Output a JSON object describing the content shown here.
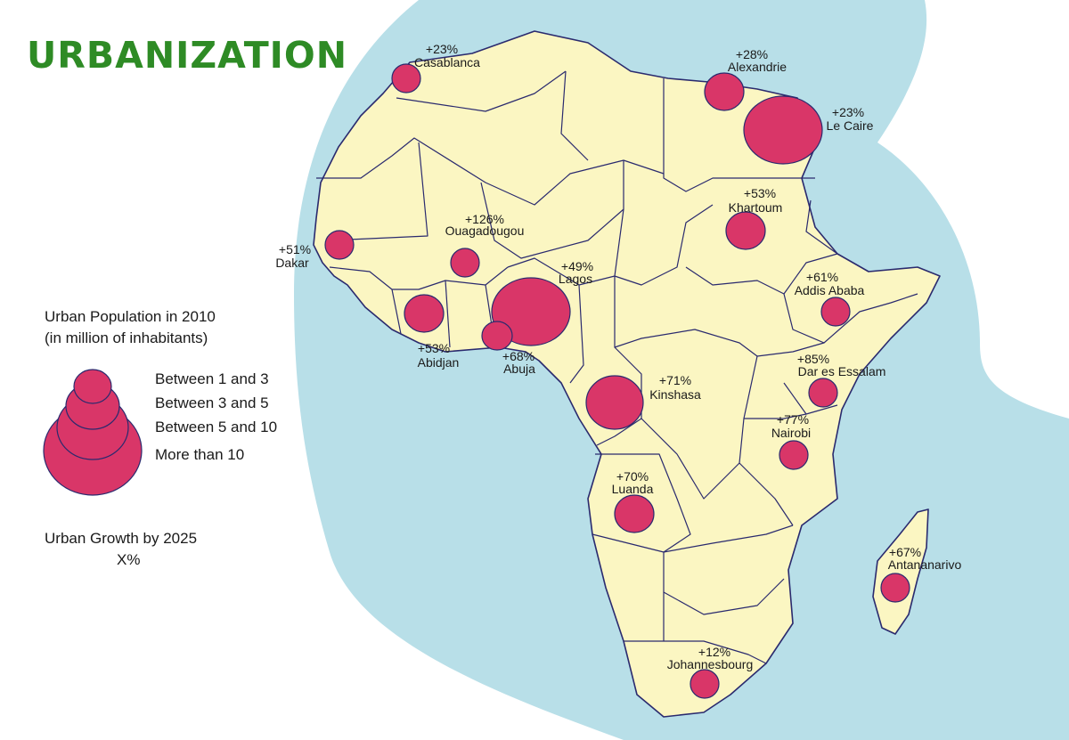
{
  "title": "URBANIZATION",
  "colors": {
    "ocean": "#b8dfe8",
    "land": "#fbf6c2",
    "border": "#2a2a6e",
    "bubble": "#d93668",
    "title": "#2e8b25"
  },
  "legend": {
    "heading_line1": "Urban Population in 2010",
    "heading_line2": "(in million of inhabitants)",
    "classes": [
      "Between 1 and 3",
      "Between 3 and 5",
      "Between 5 and 10",
      "More than 10"
    ],
    "growth_line1": "Urban Growth by 2025",
    "growth_line2": "X%"
  },
  "cities": [
    {
      "name": "Casablanca",
      "growth": "+23%",
      "population_class": "Between 1 and 3"
    },
    {
      "name": "Alexandrie",
      "growth": "+28%",
      "population_class": "Between 3 and 5"
    },
    {
      "name": "Le Caire",
      "growth": "+23%",
      "population_class": "More than 10"
    },
    {
      "name": "Khartoum",
      "growth": "+53%",
      "population_class": "Between 3 and 5"
    },
    {
      "name": "Ouagadougou",
      "growth": "+126%",
      "population_class": "Between 1 and 3"
    },
    {
      "name": "Dakar",
      "growth": "+51%",
      "population_class": "Between 1 and 3"
    },
    {
      "name": "Lagos",
      "growth": "+49%",
      "population_class": "More than 10"
    },
    {
      "name": "Addis Ababa",
      "growth": "+61%",
      "population_class": "Between 1 and 3"
    },
    {
      "name": "Abidjan",
      "growth": "+53%",
      "population_class": "Between 3 and 5"
    },
    {
      "name": "Abuja",
      "growth": "+68%",
      "population_class": "Between 1 and 3"
    },
    {
      "name": "Dar es Essalam",
      "growth": "+85%",
      "population_class": "Between 1 and 3"
    },
    {
      "name": "Kinshasa",
      "growth": "+71%",
      "population_class": "Between 5 and 10"
    },
    {
      "name": "Nairobi",
      "growth": "+77%",
      "population_class": "Between 1 and 3"
    },
    {
      "name": "Luanda",
      "growth": "+70%",
      "population_class": "Between 3 and 5"
    },
    {
      "name": "Antananarivo",
      "growth": "+67%",
      "population_class": "Between 1 and 3"
    },
    {
      "name": "Johannesbourg",
      "growth": "+12%",
      "population_class": "Between 1 and 3"
    }
  ]
}
